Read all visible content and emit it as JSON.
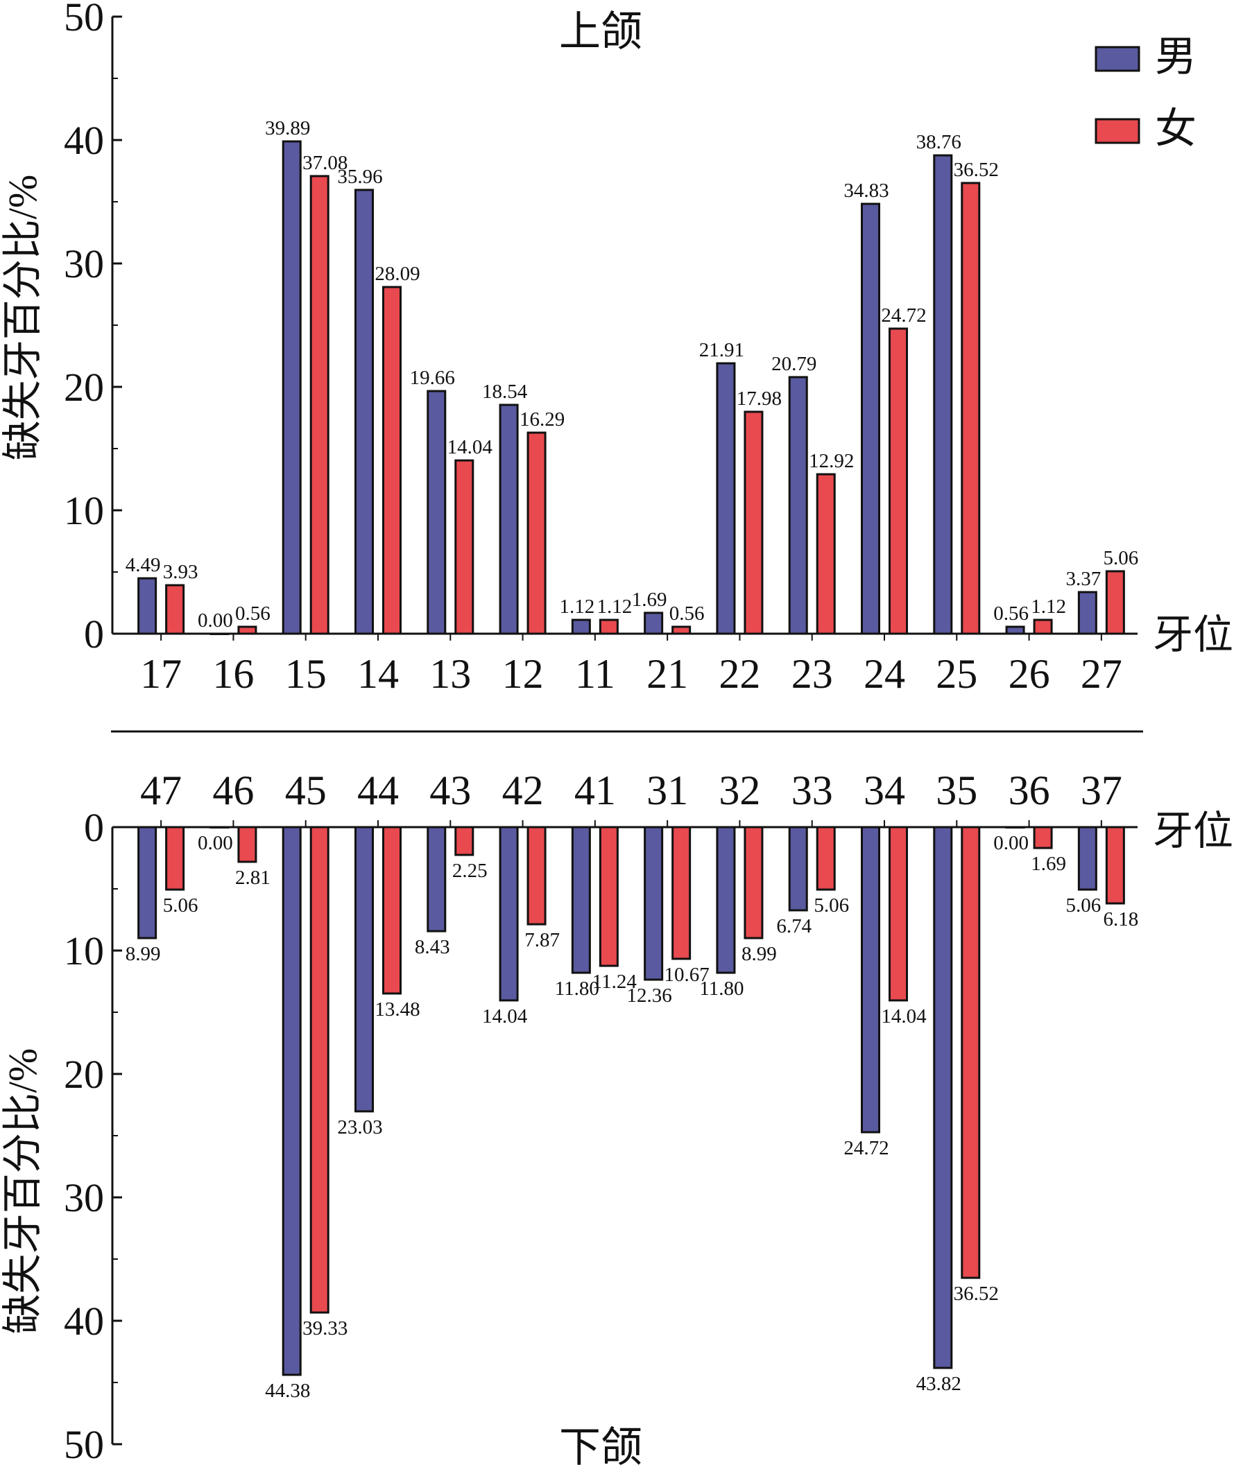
{
  "colors": {
    "male": "#5a5aa0",
    "female": "#e84a4f",
    "stroke": "#111111"
  },
  "legend": {
    "items": [
      {
        "label": "男",
        "color": "#5a5aa0"
      },
      {
        "label": "女",
        "color": "#e84a4f"
      }
    ],
    "placement": "top-right"
  },
  "chart_data": [
    {
      "type": "bar",
      "title": "上颌",
      "xlabel": "牙位",
      "ylabel": "缺失牙百分比/%",
      "ylim": [
        0,
        50
      ],
      "yticks": [
        0,
        10,
        20,
        30,
        40,
        50
      ],
      "categories": [
        "17",
        "16",
        "15",
        "14",
        "13",
        "12",
        "11",
        "21",
        "22",
        "23",
        "24",
        "25",
        "26",
        "27"
      ],
      "series": [
        {
          "name": "男",
          "values": [
            4.49,
            0.0,
            39.89,
            35.96,
            19.66,
            18.54,
            1.12,
            1.69,
            21.91,
            20.79,
            34.83,
            38.76,
            0.56,
            3.37
          ],
          "labels": [
            "4.49",
            "0.00",
            "39.89",
            "35.96",
            "19.66",
            "18.54",
            "1.12",
            "1.69",
            "21.91",
            "20.79",
            "34.83",
            "38.76",
            "0.56",
            "3.37"
          ]
        },
        {
          "name": "女",
          "values": [
            3.93,
            0.56,
            37.08,
            28.09,
            14.04,
            16.29,
            1.12,
            0.56,
            17.98,
            12.92,
            24.72,
            36.52,
            1.12,
            5.06
          ],
          "labels": [
            "3.93",
            "0.56",
            "37.08",
            "28.09",
            "14.04",
            "16.29",
            "1.12",
            "0.56",
            "17.98",
            "12.92",
            "24.72",
            "36.52",
            "1.12",
            "5.06"
          ]
        }
      ]
    },
    {
      "type": "bar",
      "title": "下颌",
      "xlabel": "牙位",
      "ylabel": "缺失牙百分比/%",
      "ylim": [
        0,
        50
      ],
      "yticks": [
        0,
        10,
        20,
        30,
        40,
        50
      ],
      "categories": [
        "47",
        "46",
        "45",
        "44",
        "43",
        "42",
        "41",
        "31",
        "32",
        "33",
        "34",
        "35",
        "36",
        "37"
      ],
      "series": [
        {
          "name": "男",
          "values": [
            8.99,
            0.0,
            44.38,
            23.03,
            8.43,
            14.04,
            11.8,
            12.36,
            11.8,
            6.74,
            24.72,
            43.82,
            0.0,
            5.06
          ],
          "labels": [
            "8.99",
            "0.00",
            "44.38",
            "23.03",
            "8.43",
            "14.04",
            "11.80",
            "12.36",
            "11.80",
            "6.74",
            "24.72",
            "43.82",
            "0.00",
            "5.06"
          ]
        },
        {
          "name": "女",
          "values": [
            5.06,
            2.81,
            39.33,
            13.48,
            2.25,
            7.87,
            11.24,
            10.67,
            8.99,
            5.06,
            14.04,
            36.52,
            1.69,
            6.18
          ],
          "labels": [
            "5.06",
            "2.81",
            "39.33",
            "13.48",
            "2.25",
            "7.87",
            "11.24",
            "10.67",
            "8.99",
            "5.06",
            "14.04",
            "36.52",
            "1.69",
            "6.18"
          ]
        }
      ]
    }
  ]
}
